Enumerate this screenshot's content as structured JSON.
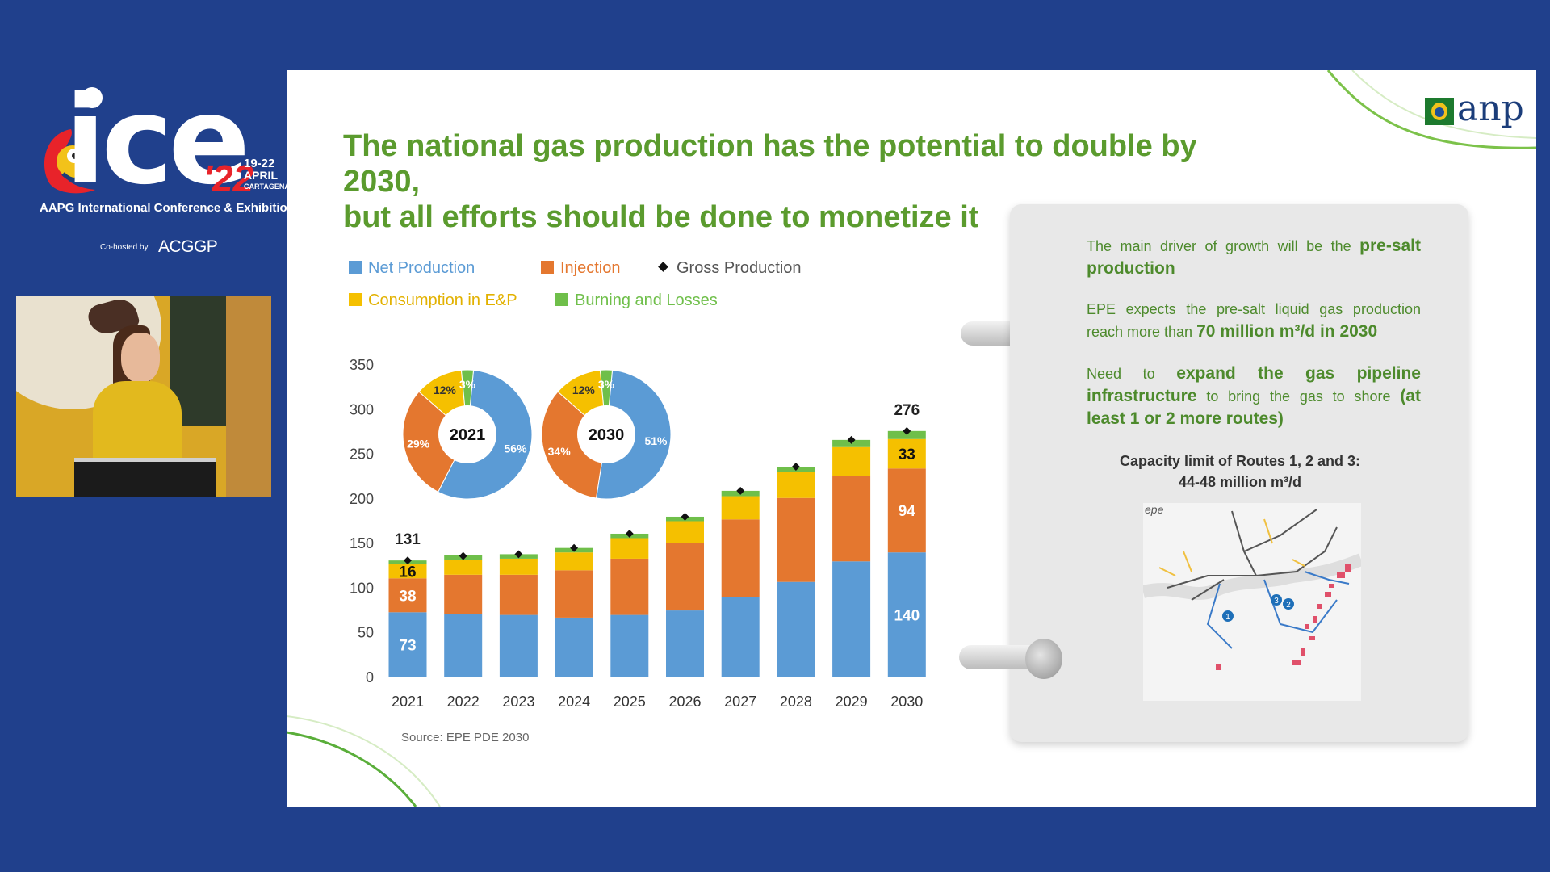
{
  "conference": {
    "logo_word": "ice",
    "year": "'22",
    "dates_line1": "19-22",
    "dates_line2": "APRIL",
    "dates_line3": "CARTAGENA",
    "name": "AAPG International Conference & Exhibition",
    "cohost_label": "Co-hosted by",
    "cohost_org": "ACGGP"
  },
  "slide": {
    "title_line1": "The national gas production has the potential to double by 2030,",
    "title_line2": "but all efforts should be done to monetize it",
    "logo_text": "anp",
    "source": "Source: EPE PDE 2030"
  },
  "legend": {
    "net": "Net Production",
    "injection": "Injection",
    "gross": "Gross Production",
    "consumption": "Consumption in E&P",
    "burning": "Burning and Losses"
  },
  "colors": {
    "net": "#5b9bd5",
    "injection": "#e4772f",
    "consumption": "#f5c000",
    "burning": "#6fbf4a",
    "title_green": "#5b9b2e"
  },
  "chart_data": {
    "type": "bar",
    "stacked": true,
    "categories": [
      "2021",
      "2022",
      "2023",
      "2024",
      "2025",
      "2026",
      "2027",
      "2028",
      "2029",
      "2030"
    ],
    "series": [
      {
        "name": "Net Production",
        "values": [
          73,
          71,
          70,
          67,
          70,
          75,
          90,
          107,
          130,
          140
        ]
      },
      {
        "name": "Injection",
        "values": [
          38,
          44,
          45,
          53,
          63,
          76,
          87,
          94,
          96,
          94
        ]
      },
      {
        "name": "Consumption in E&P",
        "values": [
          16,
          17,
          18,
          20,
          23,
          24,
          26,
          29,
          32,
          33
        ]
      },
      {
        "name": "Burning and Losses",
        "values": [
          4,
          5,
          5,
          5,
          5,
          5,
          6,
          6,
          8,
          9
        ]
      }
    ],
    "gross_production": [
      131,
      136,
      138,
      145,
      161,
      180,
      209,
      236,
      266,
      276
    ],
    "total_labels": {
      "2021": "131",
      "2030": "276"
    },
    "segment_labels": {
      "2021": {
        "net": "73",
        "injection": "38",
        "consumption": "16"
      },
      "2030": {
        "net": "140",
        "injection": "94",
        "consumption": "33"
      }
    },
    "ylim": [
      0,
      350
    ],
    "yticks": [
      "0",
      "50",
      "100",
      "150",
      "200",
      "250",
      "300",
      "350"
    ],
    "title": "",
    "xlabel": "",
    "ylabel": "",
    "pies": [
      {
        "label": "2021",
        "slices": [
          {
            "name": "Net Production",
            "value": 56,
            "text": "56%"
          },
          {
            "name": "Injection",
            "value": 29,
            "text": "29%"
          },
          {
            "name": "Consumption in E&P",
            "value": 12,
            "text": "12%"
          },
          {
            "name": "Burning and Losses",
            "value": 3,
            "text": "3%"
          }
        ]
      },
      {
        "label": "2030",
        "slices": [
          {
            "name": "Net Production",
            "value": 51,
            "text": "51%"
          },
          {
            "name": "Injection",
            "value": 34,
            "text": "34%"
          },
          {
            "name": "Consumption in E&P",
            "value": 12,
            "text": "12%"
          },
          {
            "name": "Burning and Losses",
            "value": 3,
            "text": "3%"
          }
        ]
      }
    ]
  },
  "card": {
    "p1_pre": "The main driver of growth will be the",
    "p1_bold": "pre-salt production",
    "p2_pre": "EPE expects the pre-salt liquid gas production reach more than",
    "p2_bold": "70 million m³/d in 2030",
    "p3_pre": "Need to",
    "p3_bold": "expand the gas pipeline infrastructure",
    "p3_mid": "to bring the gas to shore",
    "p3_bold2": "(at least 1 or 2 more routes)",
    "cap_line1": "Capacity limit of Routes 1, 2 and 3:",
    "cap_line2": "44-48 million m³/d",
    "map_label": "epe",
    "route_labels": [
      "1",
      "2",
      "3"
    ]
  }
}
